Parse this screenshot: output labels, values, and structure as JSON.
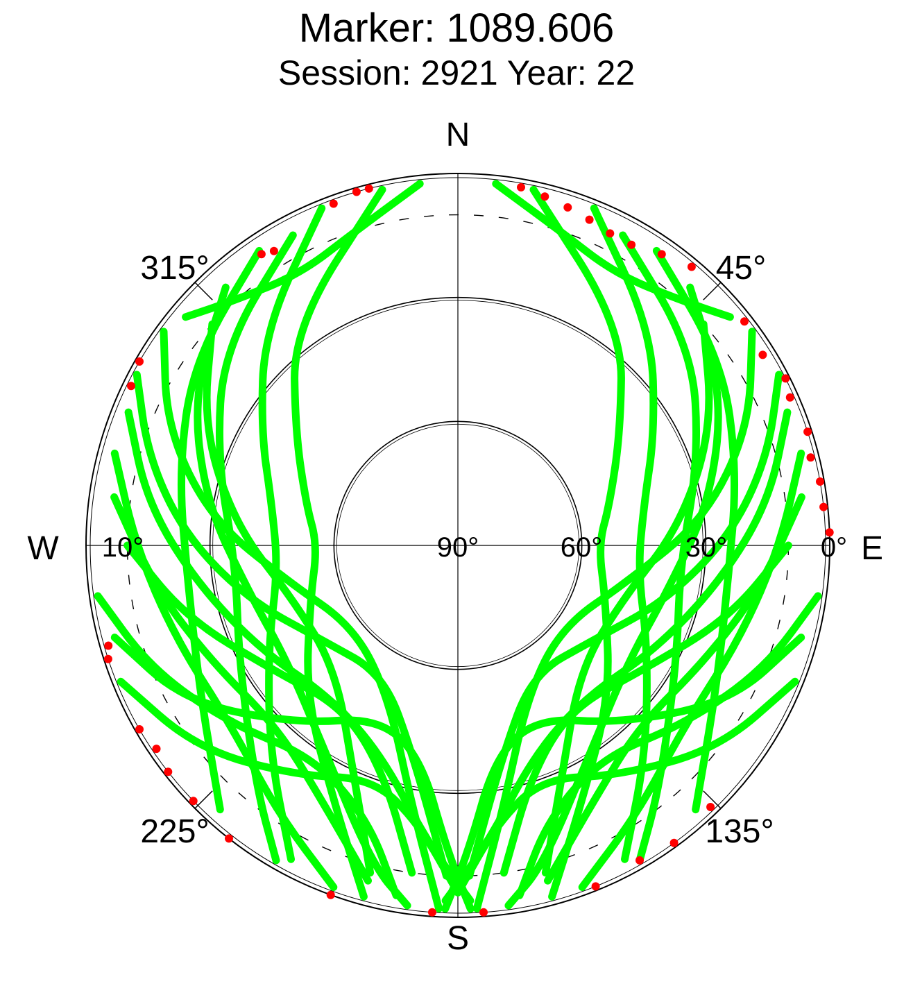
{
  "chart_data": {
    "type": "scatter",
    "projection": "polar-skyplot",
    "title": "Marker: 1089.606",
    "subtitle": "Session: 2921 Year: 22",
    "cardinal_labels": {
      "north": "N",
      "east": "E",
      "south": "S",
      "west": "W"
    },
    "azimuth_tick_labels": [
      "45°",
      "135°",
      "225°",
      "315°"
    ],
    "elevation_tick_labels": [
      "0°",
      "10°",
      "30°",
      "60°",
      "90°"
    ],
    "elevation_range": [
      0,
      90
    ],
    "azimuth_range": [
      0,
      360
    ],
    "series": [
      {
        "name": "",
        "color": "#00ff00",
        "points_per_track": 64
      },
      {
        "name": "",
        "color": "#ff0000",
        "points_per_track": 1
      }
    ],
    "tracks": [
      {
        "series": 0,
        "points": [
          [
            348,
            2
          ],
          [
            323,
            24
          ],
          [
            305,
            42
          ],
          [
            285,
            52
          ],
          [
            270,
            56
          ],
          [
            250,
            52
          ],
          [
            225,
            38
          ],
          [
            205,
            20
          ],
          [
            195,
            2
          ]
        ]
      },
      {
        "series": 0,
        "points": [
          [
            338,
            2
          ],
          [
            318,
            20
          ],
          [
            300,
            35
          ],
          [
            282,
            44
          ],
          [
            262,
            46
          ],
          [
            242,
            38
          ],
          [
            222,
            22
          ],
          [
            208,
            4
          ]
        ]
      },
      {
        "series": 0,
        "points": [
          [
            332,
            5
          ],
          [
            310,
            16
          ],
          [
            290,
            28
          ],
          [
            265,
            36
          ],
          [
            242,
            30
          ],
          [
            220,
            14
          ],
          [
            210,
            2
          ]
        ]
      },
      {
        "series": 0,
        "points": [
          [
            326,
            4
          ],
          [
            305,
            12
          ],
          [
            285,
            20
          ],
          [
            262,
            24
          ],
          [
            240,
            18
          ],
          [
            222,
            4
          ]
        ]
      },
      {
        "series": 0,
        "points": [
          [
            318,
            6
          ],
          [
            300,
            16
          ],
          [
            280,
            28
          ],
          [
            258,
            38
          ],
          [
            235,
            40
          ],
          [
            212,
            30
          ],
          [
            195,
            10
          ],
          [
            188,
            2
          ]
        ]
      },
      {
        "series": 0,
        "points": [
          [
            312,
            10
          ],
          [
            295,
            22
          ],
          [
            275,
            36
          ],
          [
            252,
            48
          ],
          [
            225,
            48
          ],
          [
            205,
            30
          ],
          [
            195,
            8
          ]
        ]
      },
      {
        "series": 0,
        "points": [
          [
            306,
            2
          ],
          [
            292,
            14
          ],
          [
            276,
            30
          ],
          [
            258,
            48
          ],
          [
            232,
            58
          ],
          [
            205,
            50
          ],
          [
            190,
            26
          ],
          [
            183,
            2
          ]
        ]
      },
      {
        "series": 0,
        "points": [
          [
            298,
            2
          ],
          [
            286,
            12
          ],
          [
            272,
            24
          ],
          [
            255,
            38
          ],
          [
            235,
            50
          ],
          [
            210,
            54
          ],
          [
            192,
            38
          ],
          [
            182,
            10
          ]
        ]
      },
      {
        "series": 0,
        "points": [
          [
            292,
            4
          ],
          [
            278,
            14
          ],
          [
            262,
            26
          ],
          [
            242,
            36
          ],
          [
            220,
            42
          ],
          [
            200,
            36
          ],
          [
            186,
            18
          ],
          [
            178,
            4
          ]
        ]
      },
      {
        "series": 0,
        "points": [
          [
            285,
            4
          ],
          [
            270,
            12
          ],
          [
            252,
            18
          ],
          [
            232,
            20
          ],
          [
            214,
            12
          ],
          [
            200,
            2
          ]
        ]
      },
      {
        "series": 0,
        "points": [
          [
            278,
            6
          ],
          [
            262,
            16
          ],
          [
            245,
            24
          ],
          [
            225,
            28
          ],
          [
            208,
            20
          ],
          [
            195,
            6
          ]
        ]
      },
      {
        "series": 0,
        "points": [
          [
            270,
            10
          ],
          [
            255,
            22
          ],
          [
            236,
            36
          ],
          [
            215,
            42
          ],
          [
            198,
            32
          ],
          [
            188,
            10
          ]
        ]
      },
      {
        "series": 0,
        "points": [
          [
            262,
            2
          ],
          [
            248,
            10
          ],
          [
            232,
            20
          ],
          [
            214,
            28
          ],
          [
            198,
            20
          ],
          [
            190,
            4
          ]
        ]
      },
      {
        "series": 0,
        "points": [
          [
            255,
            4
          ],
          [
            240,
            14
          ],
          [
            222,
            32
          ],
          [
            205,
            44
          ],
          [
            190,
            38
          ],
          [
            182,
            16
          ],
          [
            178,
            2
          ]
        ]
      },
      {
        "series": 0,
        "points": [
          [
            248,
            2
          ],
          [
            232,
            10
          ],
          [
            215,
            22
          ],
          [
            200,
            30
          ],
          [
            188,
            22
          ],
          [
            180,
            6
          ]
        ]
      },
      {
        "series": 0,
        "points": [
          [
            12,
            2
          ],
          [
            37,
            24
          ],
          [
            55,
            42
          ],
          [
            75,
            52
          ],
          [
            90,
            56
          ],
          [
            110,
            52
          ],
          [
            135,
            38
          ],
          [
            155,
            20
          ],
          [
            165,
            2
          ]
        ]
      },
      {
        "series": 0,
        "points": [
          [
            22,
            2
          ],
          [
            42,
            20
          ],
          [
            60,
            35
          ],
          [
            78,
            44
          ],
          [
            98,
            46
          ],
          [
            118,
            38
          ],
          [
            138,
            22
          ],
          [
            152,
            4
          ]
        ]
      },
      {
        "series": 0,
        "points": [
          [
            28,
            5
          ],
          [
            50,
            16
          ],
          [
            70,
            28
          ],
          [
            95,
            36
          ],
          [
            118,
            30
          ],
          [
            140,
            14
          ],
          [
            150,
            2
          ]
        ]
      },
      {
        "series": 0,
        "points": [
          [
            34,
            4
          ],
          [
            55,
            12
          ],
          [
            75,
            20
          ],
          [
            98,
            24
          ],
          [
            120,
            18
          ],
          [
            138,
            4
          ]
        ]
      },
      {
        "series": 0,
        "points": [
          [
            42,
            6
          ],
          [
            60,
            16
          ],
          [
            80,
            28
          ],
          [
            102,
            38
          ],
          [
            125,
            40
          ],
          [
            148,
            30
          ],
          [
            165,
            10
          ],
          [
            172,
            2
          ]
        ]
      },
      {
        "series": 0,
        "points": [
          [
            48,
            10
          ],
          [
            65,
            22
          ],
          [
            85,
            36
          ],
          [
            108,
            48
          ],
          [
            135,
            48
          ],
          [
            155,
            30
          ],
          [
            165,
            8
          ]
        ]
      },
      {
        "series": 0,
        "points": [
          [
            54,
            2
          ],
          [
            68,
            14
          ],
          [
            84,
            30
          ],
          [
            102,
            48
          ],
          [
            128,
            58
          ],
          [
            155,
            50
          ],
          [
            170,
            26
          ],
          [
            177,
            2
          ]
        ]
      },
      {
        "series": 0,
        "points": [
          [
            62,
            2
          ],
          [
            74,
            12
          ],
          [
            88,
            24
          ],
          [
            105,
            38
          ],
          [
            125,
            50
          ],
          [
            150,
            54
          ],
          [
            168,
            38
          ],
          [
            178,
            10
          ]
        ]
      },
      {
        "series": 0,
        "points": [
          [
            68,
            4
          ],
          [
            82,
            14
          ],
          [
            98,
            26
          ],
          [
            118,
            36
          ],
          [
            140,
            42
          ],
          [
            160,
            36
          ],
          [
            174,
            18
          ],
          [
            182,
            4
          ]
        ]
      },
      {
        "series": 0,
        "points": [
          [
            75,
            4
          ],
          [
            90,
            12
          ],
          [
            108,
            18
          ],
          [
            128,
            20
          ],
          [
            146,
            12
          ],
          [
            160,
            2
          ]
        ]
      },
      {
        "series": 0,
        "points": [
          [
            82,
            6
          ],
          [
            98,
            16
          ],
          [
            115,
            24
          ],
          [
            135,
            28
          ],
          [
            152,
            20
          ],
          [
            165,
            6
          ]
        ]
      },
      {
        "series": 0,
        "points": [
          [
            90,
            10
          ],
          [
            105,
            22
          ],
          [
            124,
            36
          ],
          [
            145,
            42
          ],
          [
            162,
            32
          ],
          [
            172,
            10
          ]
        ]
      },
      {
        "series": 0,
        "points": [
          [
            98,
            2
          ],
          [
            112,
            10
          ],
          [
            128,
            20
          ],
          [
            146,
            28
          ],
          [
            162,
            20
          ],
          [
            170,
            4
          ]
        ]
      },
      {
        "series": 0,
        "points": [
          [
            105,
            4
          ],
          [
            120,
            14
          ],
          [
            138,
            32
          ],
          [
            155,
            44
          ],
          [
            170,
            38
          ],
          [
            178,
            16
          ],
          [
            182,
            2
          ]
        ]
      },
      {
        "series": 0,
        "points": [
          [
            112,
            2
          ],
          [
            128,
            10
          ],
          [
            145,
            22
          ],
          [
            160,
            30
          ],
          [
            172,
            22
          ],
          [
            180,
            6
          ]
        ]
      },
      {
        "series": 0,
        "points": [
          [
            6,
            2
          ],
          [
            18,
            10
          ],
          [
            30,
            14
          ],
          [
            42,
            10
          ],
          [
            50,
            4
          ]
        ]
      },
      {
        "series": 0,
        "points": [
          [
            354,
            2
          ],
          [
            342,
            10
          ],
          [
            330,
            14
          ],
          [
            318,
            10
          ],
          [
            310,
            4
          ]
        ]
      }
    ],
    "red_points": [
      [
        10,
        2
      ],
      [
        14,
        3
      ],
      [
        18,
        4
      ],
      [
        22,
        5
      ],
      [
        26,
        6
      ],
      [
        30,
        6
      ],
      [
        35,
        4
      ],
      [
        40,
        2
      ],
      [
        52,
        2
      ],
      [
        58,
        3
      ],
      [
        63,
        1
      ],
      [
        66,
        2
      ],
      [
        72,
        1
      ],
      [
        76,
        2
      ],
      [
        80,
        1
      ],
      [
        84,
        1
      ],
      [
        88,
        0
      ],
      [
        340,
        2
      ],
      [
        344,
        1
      ],
      [
        346,
        1
      ],
      [
        328,
        6
      ],
      [
        326,
        5
      ],
      [
        300,
        1
      ],
      [
        296,
        2
      ],
      [
        254,
        2
      ],
      [
        252,
        1
      ],
      [
        240,
        1
      ],
      [
        236,
        2
      ],
      [
        232,
        1
      ],
      [
        226,
        1
      ],
      [
        218,
        0
      ],
      [
        200,
        0
      ],
      [
        184,
        1
      ],
      [
        176,
        1
      ],
      [
        158,
        1
      ],
      [
        150,
        2
      ],
      [
        144,
        1
      ],
      [
        136,
        2
      ]
    ]
  },
  "colors": {
    "track": "#00ff00",
    "below_mask": "#ff0000",
    "grid": "#000000"
  }
}
